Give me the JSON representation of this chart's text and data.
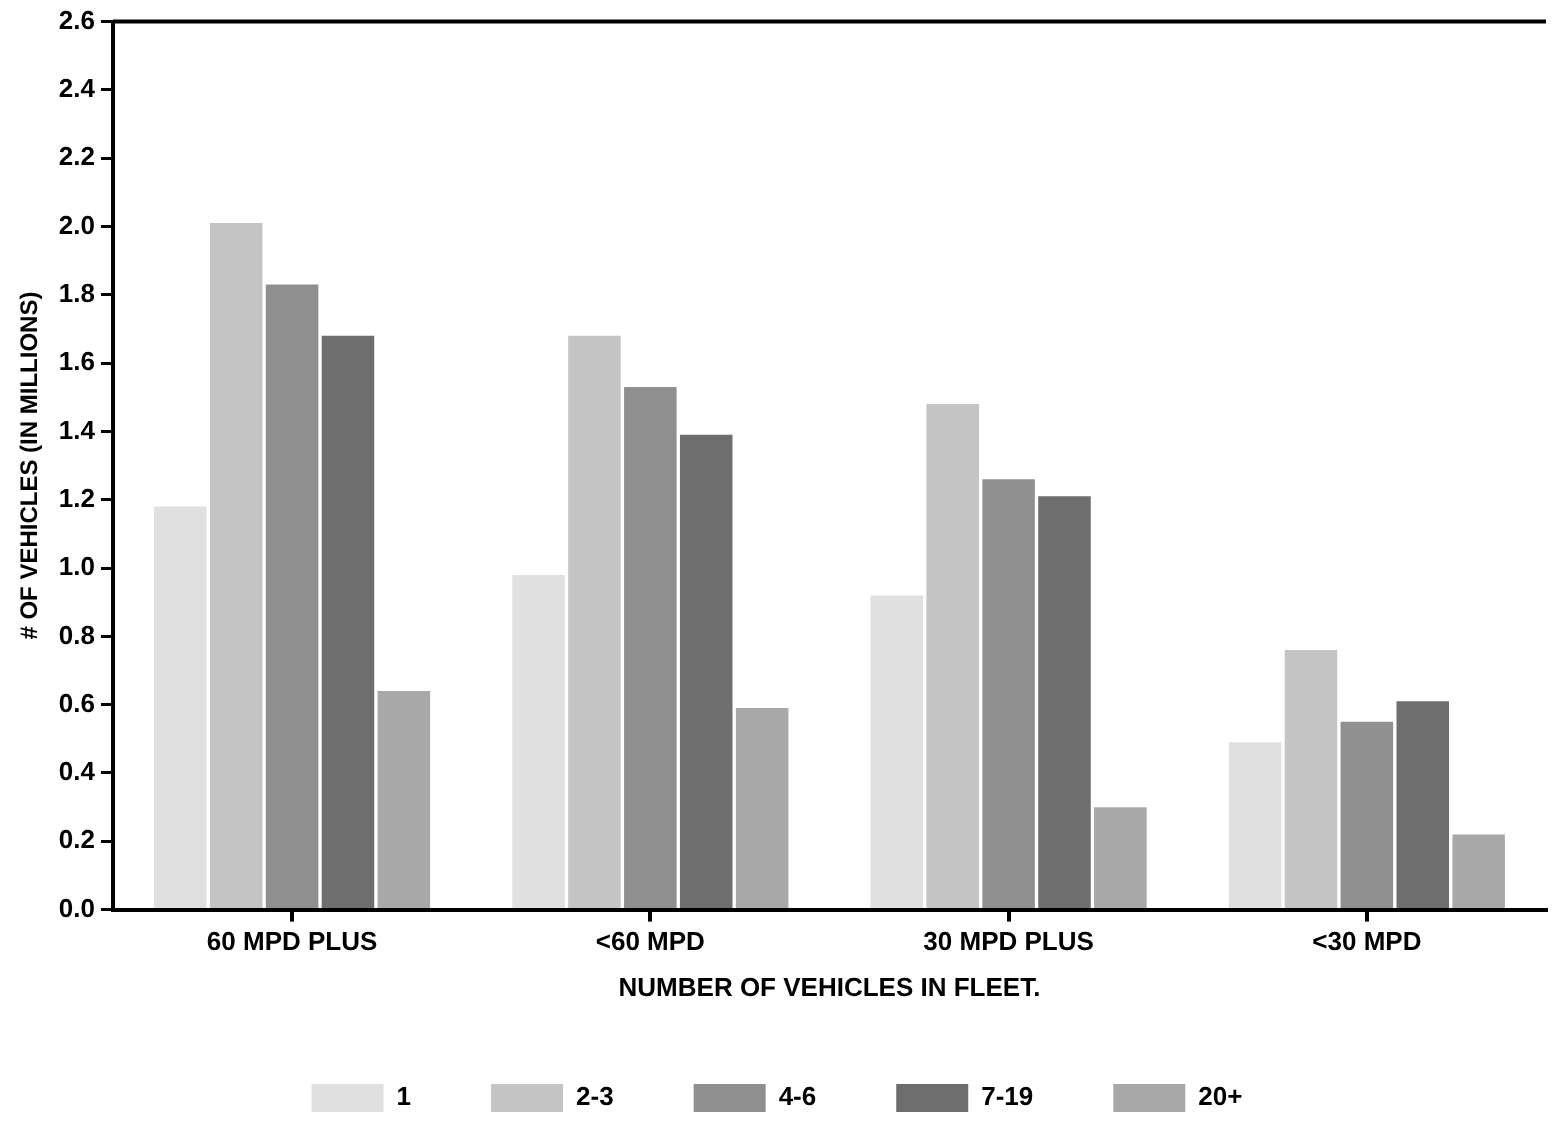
{
  "chart_data": {
    "type": "bar",
    "categories": [
      "60 MPD PLUS",
      "<60 MPD",
      "30 MPD PLUS",
      "<30 MPD"
    ],
    "series": [
      {
        "name": "1",
        "color": "#e0e0e0",
        "values": [
          1.18,
          0.98,
          0.92,
          0.49
        ]
      },
      {
        "name": "2-3",
        "color": "#c4c4c4",
        "values": [
          2.01,
          1.68,
          1.48,
          0.76
        ]
      },
      {
        "name": "4-6",
        "color": "#8f8f8f",
        "values": [
          1.83,
          1.53,
          1.26,
          0.55
        ]
      },
      {
        "name": "7-19",
        "color": "#6e6e6e",
        "values": [
          1.68,
          1.39,
          1.21,
          0.61
        ]
      },
      {
        "name": "20+",
        "color": "#a8a8a8",
        "values": [
          0.64,
          0.59,
          0.3,
          0.22
        ]
      }
    ],
    "xlabel": "NUMBER OF VEHICLES IN FLEET.",
    "ylabel": "# OF VEHICLES (IN MILLIONS)",
    "ylim": [
      0,
      2.6
    ],
    "yticks": [
      {
        "value": 0,
        "label": "0.0"
      },
      {
        "value": 0.2,
        "label": "0.2"
      },
      {
        "value": 0.4,
        "label": "0.4"
      },
      {
        "value": 0.6,
        "label": "0.6"
      },
      {
        "value": 0.8,
        "label": "0.8"
      },
      {
        "value": 1,
        "label": "1.0"
      },
      {
        "value": 1.2,
        "label": "1.2"
      },
      {
        "value": 1.4,
        "label": "1.4"
      },
      {
        "value": 1.6,
        "label": "1.6"
      },
      {
        "value": 1.8,
        "label": "1.8"
      },
      {
        "value": 2,
        "label": "2.0"
      },
      {
        "value": 2.2,
        "label": "2.2"
      },
      {
        "value": 2.4,
        "label": "2.4"
      },
      {
        "value": 2.6,
        "label": "2.6"
      }
    ],
    "grid": false,
    "legend": "bottom"
  }
}
